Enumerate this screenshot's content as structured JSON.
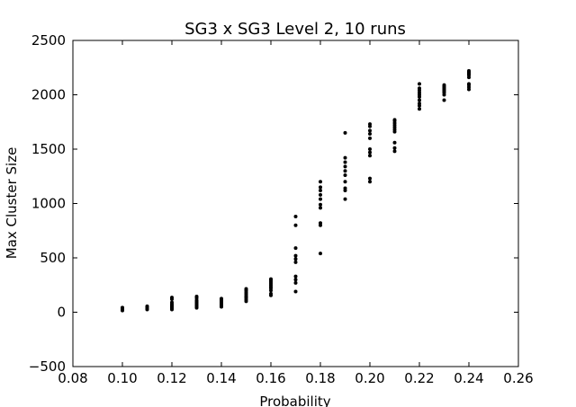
{
  "chart_data": {
    "type": "scatter",
    "title": "SG3 x SG3 Level 2, 10 runs",
    "xlabel": "Probability",
    "ylabel": "Max Cluster Size",
    "xlim": [
      0.08,
      0.26
    ],
    "ylim": [
      -500,
      2500
    ],
    "xticks": [
      "0.08",
      "0.10",
      "0.12",
      "0.14",
      "0.16",
      "0.18",
      "0.20",
      "0.22",
      "0.24",
      "0.26"
    ],
    "yticks": [
      "−500",
      "0",
      "500",
      "1000",
      "1500",
      "2000",
      "2500"
    ],
    "xtick_values": [
      0.08,
      0.1,
      0.12,
      0.14,
      0.16,
      0.18,
      0.2,
      0.22,
      0.24,
      0.26
    ],
    "ytick_values": [
      -500,
      0,
      500,
      1000,
      1500,
      2000,
      2500
    ],
    "grid": false,
    "marker_color": "#000000",
    "series": [
      {
        "points": [
          [
            0.1,
            15
          ],
          [
            0.1,
            20
          ],
          [
            0.1,
            25
          ],
          [
            0.1,
            28
          ],
          [
            0.1,
            32
          ],
          [
            0.1,
            35
          ],
          [
            0.1,
            38
          ],
          [
            0.1,
            40
          ],
          [
            0.1,
            42
          ],
          [
            0.1,
            22
          ],
          [
            0.11,
            25
          ],
          [
            0.11,
            30
          ],
          [
            0.11,
            35
          ],
          [
            0.11,
            40
          ],
          [
            0.11,
            45
          ],
          [
            0.11,
            50
          ],
          [
            0.11,
            55
          ],
          [
            0.11,
            38
          ],
          [
            0.11,
            42
          ],
          [
            0.11,
            48
          ],
          [
            0.12,
            25
          ],
          [
            0.12,
            35
          ],
          [
            0.12,
            45
          ],
          [
            0.12,
            55
          ],
          [
            0.12,
            65
          ],
          [
            0.12,
            75
          ],
          [
            0.12,
            90
          ],
          [
            0.12,
            120
          ],
          [
            0.12,
            135
          ],
          [
            0.12,
            50
          ],
          [
            0.13,
            40
          ],
          [
            0.13,
            50
          ],
          [
            0.13,
            60
          ],
          [
            0.13,
            70
          ],
          [
            0.13,
            80
          ],
          [
            0.13,
            90
          ],
          [
            0.13,
            100
          ],
          [
            0.13,
            110
          ],
          [
            0.13,
            130
          ],
          [
            0.13,
            145
          ],
          [
            0.14,
            50
          ],
          [
            0.14,
            60
          ],
          [
            0.14,
            70
          ],
          [
            0.14,
            80
          ],
          [
            0.14,
            90
          ],
          [
            0.14,
            100
          ],
          [
            0.14,
            110
          ],
          [
            0.14,
            120
          ],
          [
            0.14,
            125
          ],
          [
            0.14,
            65
          ],
          [
            0.15,
            100
          ],
          [
            0.15,
            115
          ],
          [
            0.15,
            130
          ],
          [
            0.15,
            140
          ],
          [
            0.15,
            150
          ],
          [
            0.15,
            165
          ],
          [
            0.15,
            180
          ],
          [
            0.15,
            195
          ],
          [
            0.15,
            205
          ],
          [
            0.15,
            215
          ],
          [
            0.16,
            155
          ],
          [
            0.16,
            170
          ],
          [
            0.16,
            200
          ],
          [
            0.16,
            220
          ],
          [
            0.16,
            235
          ],
          [
            0.16,
            250
          ],
          [
            0.16,
            265
          ],
          [
            0.16,
            280
          ],
          [
            0.16,
            295
          ],
          [
            0.16,
            305
          ],
          [
            0.17,
            190
          ],
          [
            0.17,
            270
          ],
          [
            0.17,
            300
          ],
          [
            0.17,
            330
          ],
          [
            0.17,
            460
          ],
          [
            0.17,
            490
          ],
          [
            0.17,
            520
          ],
          [
            0.17,
            590
          ],
          [
            0.17,
            800
          ],
          [
            0.17,
            880
          ],
          [
            0.18,
            540
          ],
          [
            0.18,
            800
          ],
          [
            0.18,
            820
          ],
          [
            0.18,
            960
          ],
          [
            0.18,
            990
          ],
          [
            0.18,
            1040
          ],
          [
            0.18,
            1080
          ],
          [
            0.18,
            1120
          ],
          [
            0.18,
            1150
          ],
          [
            0.18,
            1200
          ],
          [
            0.19,
            1040
          ],
          [
            0.19,
            1120
          ],
          [
            0.19,
            1140
          ],
          [
            0.19,
            1200
          ],
          [
            0.19,
            1260
          ],
          [
            0.19,
            1300
          ],
          [
            0.19,
            1340
          ],
          [
            0.19,
            1380
          ],
          [
            0.19,
            1420
          ],
          [
            0.19,
            1650
          ],
          [
            0.2,
            1200
          ],
          [
            0.2,
            1230
          ],
          [
            0.2,
            1440
          ],
          [
            0.2,
            1470
          ],
          [
            0.2,
            1500
          ],
          [
            0.2,
            1600
          ],
          [
            0.2,
            1640
          ],
          [
            0.2,
            1670
          ],
          [
            0.2,
            1710
          ],
          [
            0.2,
            1730
          ],
          [
            0.21,
            1480
          ],
          [
            0.21,
            1510
          ],
          [
            0.21,
            1560
          ],
          [
            0.21,
            1660
          ],
          [
            0.21,
            1680
          ],
          [
            0.21,
            1700
          ],
          [
            0.21,
            1720
          ],
          [
            0.21,
            1740
          ],
          [
            0.21,
            1760
          ],
          [
            0.21,
            1770
          ],
          [
            0.22,
            1870
          ],
          [
            0.22,
            1900
          ],
          [
            0.22,
            1920
          ],
          [
            0.22,
            1950
          ],
          [
            0.22,
            1980
          ],
          [
            0.22,
            2000
          ],
          [
            0.22,
            2020
          ],
          [
            0.22,
            2040
          ],
          [
            0.22,
            2060
          ],
          [
            0.22,
            2100
          ],
          [
            0.23,
            1950
          ],
          [
            0.23,
            2000
          ],
          [
            0.23,
            2020
          ],
          [
            0.23,
            2030
          ],
          [
            0.23,
            2040
          ],
          [
            0.23,
            2050
          ],
          [
            0.23,
            2060
          ],
          [
            0.23,
            2070
          ],
          [
            0.23,
            2080
          ],
          [
            0.23,
            2090
          ],
          [
            0.24,
            2050
          ],
          [
            0.24,
            2070
          ],
          [
            0.24,
            2090
          ],
          [
            0.24,
            2100
          ],
          [
            0.24,
            2160
          ],
          [
            0.24,
            2180
          ],
          [
            0.24,
            2190
          ],
          [
            0.24,
            2200
          ],
          [
            0.24,
            2210
          ],
          [
            0.24,
            2220
          ]
        ]
      }
    ]
  }
}
